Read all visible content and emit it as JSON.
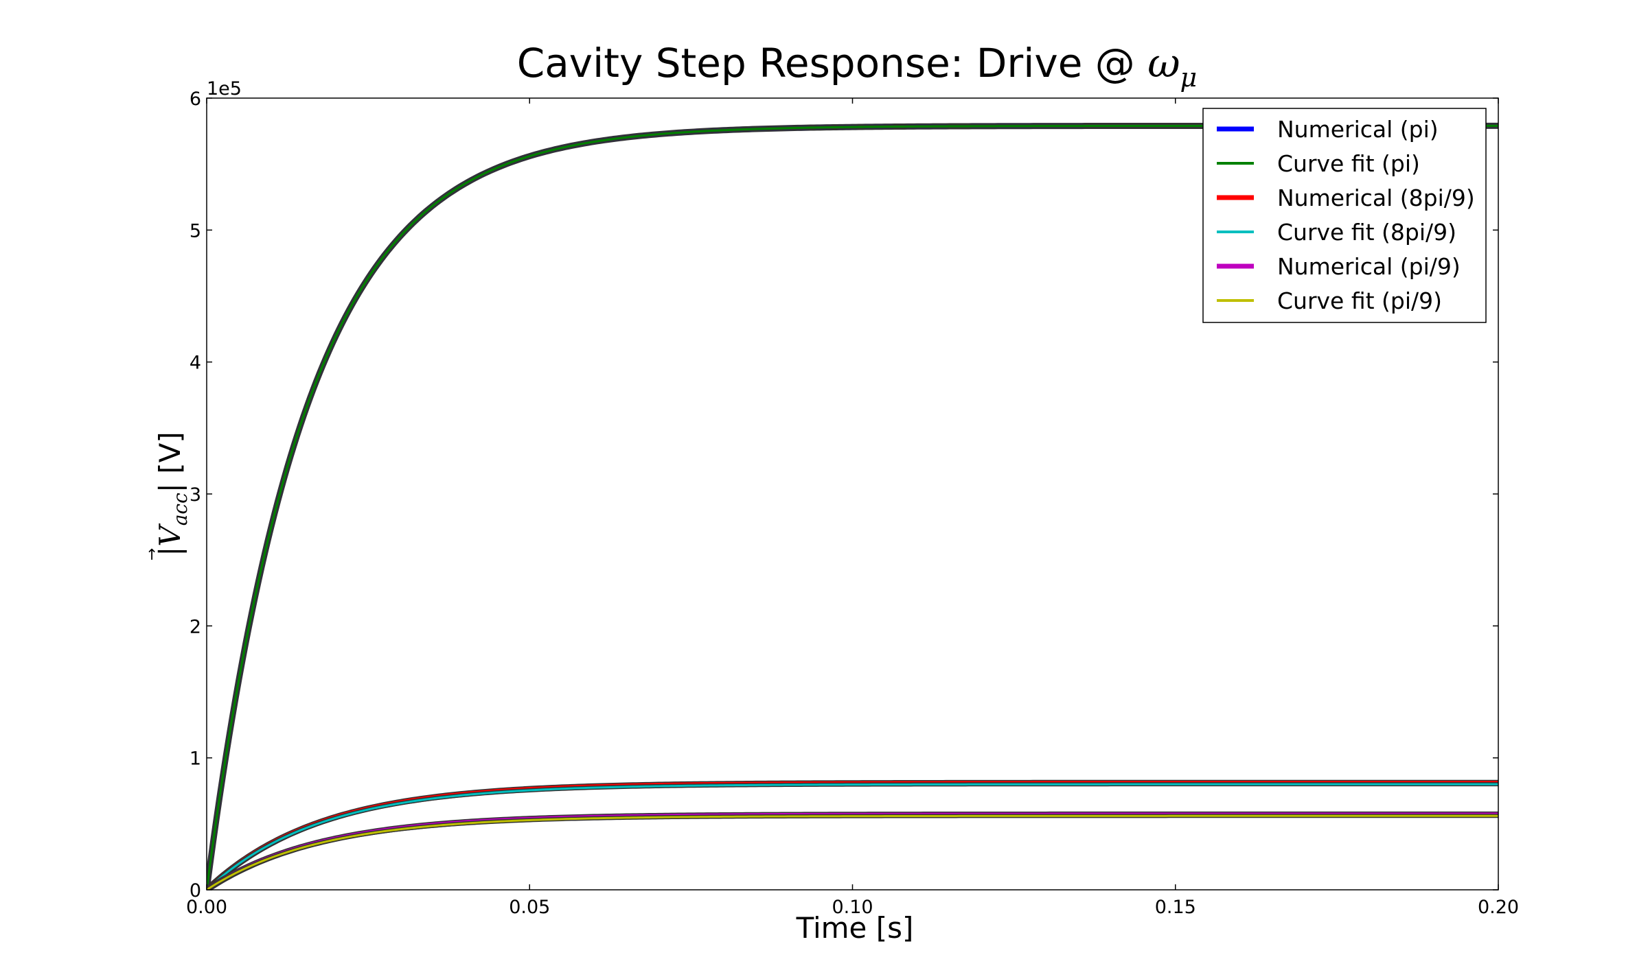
{
  "chart_data": {
    "type": "line",
    "title": "Cavity Step Response: Drive @ ",
    "title_math": "ω",
    "title_math_sub": "μ",
    "xlabel": "Time [s]",
    "ylabel_math": "|V",
    "ylabel_math_sub": "acc",
    "ylabel_math_end": "|",
    "ylabel_unit": " [V]",
    "y_multiplier_label": "1e5",
    "xlim": [
      0.0,
      0.2
    ],
    "ylim": [
      0,
      6
    ],
    "xticks": [
      0.0,
      0.05,
      0.1,
      0.15,
      0.2
    ],
    "xtick_labels": [
      "0.00",
      "0.05",
      "0.10",
      "0.15",
      "0.20"
    ],
    "yticks": [
      0,
      1,
      2,
      3,
      4,
      5,
      6
    ],
    "ytick_labels": [
      "0",
      "1",
      "2",
      "3",
      "4",
      "5",
      "6"
    ],
    "grid": false,
    "legend_position": "top-right",
    "series": [
      {
        "name": "Numerical (pi)",
        "model": "exp_rise",
        "v_final": 5.79,
        "tau": 0.0155,
        "color": "#0000ff",
        "width": "thick"
      },
      {
        "name": "Curve fit (pi)",
        "model": "exp_rise",
        "v_final": 5.79,
        "tau": 0.0155,
        "color": "#008000",
        "width": "thin"
      },
      {
        "name": "Numerical (8pi/9)",
        "model": "exp_rise",
        "v_final": 0.81,
        "tau": 0.0175,
        "color": "#ff0000",
        "width": "thick"
      },
      {
        "name": "Curve fit (8pi/9)",
        "model": "exp_rise",
        "v_final": 0.8,
        "tau": 0.0175,
        "color": "#00bfbf",
        "width": "thin"
      },
      {
        "name": "Numerical (pi/9)",
        "model": "exp_rise",
        "v_final": 0.57,
        "tau": 0.0175,
        "color": "#bf00bf",
        "width": "thick"
      },
      {
        "name": "Curve fit (pi/9)",
        "model": "exp_rise",
        "v_final": 0.56,
        "tau": 0.0175,
        "color": "#bfbf00",
        "width": "thin"
      }
    ]
  }
}
